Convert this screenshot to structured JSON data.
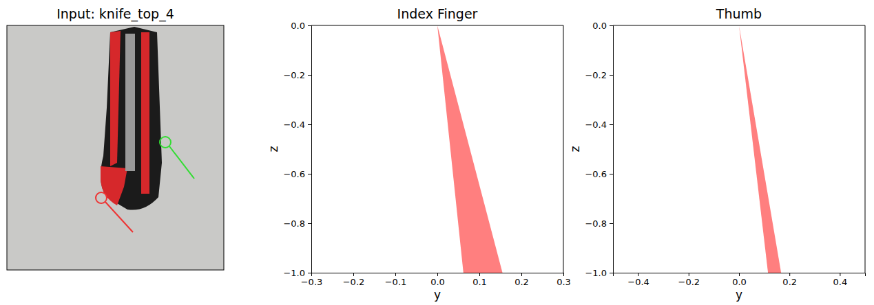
{
  "chart_data": [
    {
      "type": "image",
      "title": "Input: knife_top_4",
      "tick_labels": false
    },
    {
      "type": "polygon",
      "title": "Index Finger",
      "x_label": "y",
      "y_label": "z",
      "x": [
        0,
        0.062,
        0.155
      ],
      "y": [
        0,
        -1,
        -1
      ],
      "color": "#ff7f7f",
      "xlim": [
        -0.3,
        0.3
      ],
      "ylim": [
        -1,
        0
      ],
      "xticks": [
        {
          "value": -0.3,
          "label": "−0.3"
        },
        {
          "value": -0.2,
          "label": "−0.2"
        },
        {
          "value": -0.1,
          "label": "−0.1"
        },
        {
          "value": 0,
          "label": "0.0"
        },
        0.1,
        0.2,
        0.3
      ],
      "yticks": [
        {
          "value": -1,
          "label": "−1.0"
        },
        {
          "value": -0.8,
          "label": "−0.8"
        },
        {
          "value": -0.6,
          "label": "−0.6"
        },
        {
          "value": -0.4,
          "label": "−0.4"
        },
        {
          "value": -0.2,
          "label": "−0.2"
        },
        {
          "value": 0,
          "label": "0.0"
        }
      ]
    },
    {
      "type": "polygon",
      "title": "Thumb",
      "x_label": "y",
      "y_label": "z",
      "x": [
        0,
        0.115,
        0.167
      ],
      "y": [
        0,
        -1,
        -1
      ],
      "color": "#ff7f7f",
      "xlim": [
        -0.5,
        0.5
      ],
      "ylim": [
        -1,
        0
      ],
      "xticks": [
        {
          "value": -0.4,
          "label": "−0.4"
        },
        {
          "value": -0.2,
          "label": "−0.2"
        },
        {
          "value": 0,
          "label": "0.0"
        },
        0.2,
        0.4
      ],
      "yticks": [
        {
          "value": -1,
          "label": "−1.0"
        },
        {
          "value": -0.8,
          "label": "−0.8"
        },
        {
          "value": -0.6,
          "label": "−0.6"
        },
        {
          "value": -0.4,
          "label": "−0.4"
        },
        {
          "value": -0.2,
          "label": "−0.2"
        },
        {
          "value": 0,
          "label": "0.0"
        }
      ]
    }
  ]
}
